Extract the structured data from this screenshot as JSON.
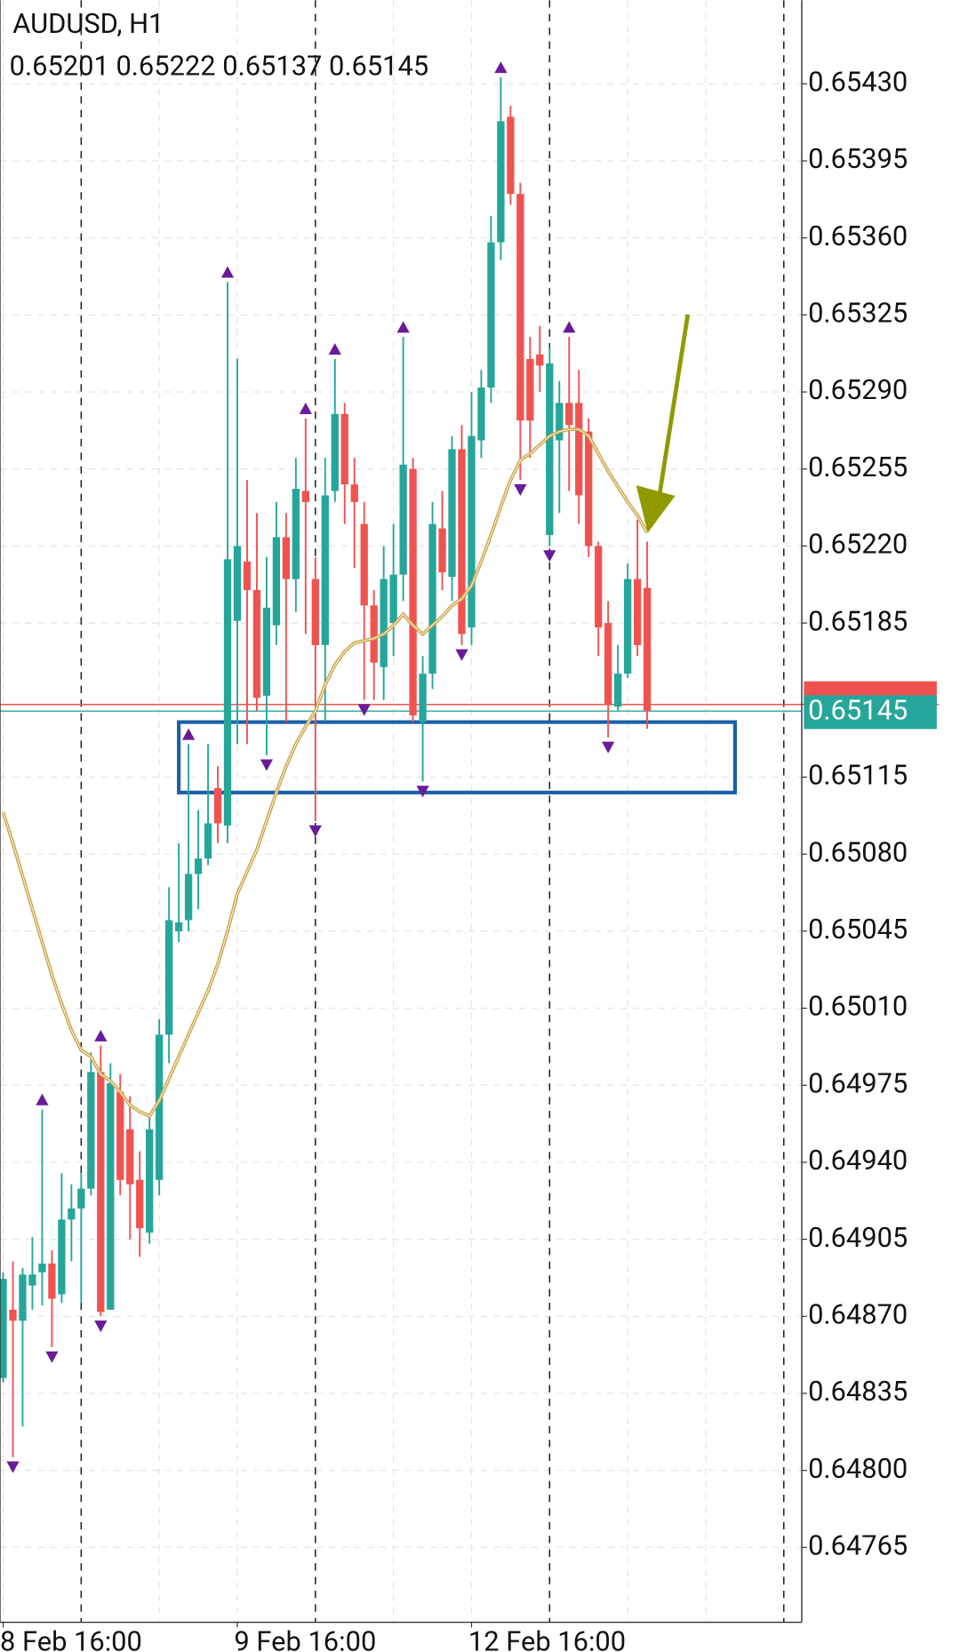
{
  "chart_data": {
    "type": "candlestick",
    "header": {
      "symbol": "AUDUSD, H1",
      "ohlc": "0.65201 0.65222 0.65137 0.65145"
    },
    "up_color": "#26a69a",
    "down_color": "#ef5350",
    "open": [
      0.64842,
      0.64873,
      0.64868,
      0.64884,
      0.6489,
      0.64894,
      0.6488,
      0.64914,
      0.64919,
      0.64928,
      0.64981,
      0.64873,
      0.64972,
      0.64955,
      0.64932,
      0.64908,
      0.64932,
      0.64998,
      0.65045,
      0.6505,
      0.65071,
      0.65078,
      0.6511,
      0.65093,
      0.65186,
      0.65213,
      0.652,
      0.65152,
      0.65184,
      0.65224,
      0.65205,
      0.65245,
      0.65205,
      0.65175,
      0.65245,
      0.6528,
      0.65248,
      0.6523,
      0.65193,
      0.65165,
      0.65185,
      0.65207,
      0.65255,
      0.6514,
      0.65162,
      0.65228,
      0.65206,
      0.65264,
      0.65183,
      0.65268,
      0.65292,
      0.65358,
      0.65415,
      0.6538,
      0.65305,
      0.65307,
      0.65225,
      0.65268,
      0.65285,
      0.65285,
      0.65272,
      0.6522,
      0.65185,
      0.65147,
      0.65162,
      0.65205,
      0.65201
    ],
    "high": [
      0.6489,
      0.64895,
      0.64892,
      0.64906,
      0.64964,
      0.649,
      0.64935,
      0.6493,
      0.64935,
      0.6499,
      0.64993,
      0.64985,
      0.6498,
      0.6497,
      0.64945,
      0.64962,
      0.65005,
      0.65065,
      0.65085,
      0.6513,
      0.651,
      0.6513,
      0.6512,
      0.6534,
      0.65305,
      0.6525,
      0.65235,
      0.65215,
      0.6524,
      0.65235,
      0.6526,
      0.65278,
      0.65215,
      0.6526,
      0.65305,
      0.65285,
      0.6526,
      0.6524,
      0.652,
      0.6522,
      0.6523,
      0.65315,
      0.6526,
      0.6517,
      0.6524,
      0.65245,
      0.6527,
      0.65275,
      0.6529,
      0.653,
      0.6537,
      0.65433,
      0.6542,
      0.65385,
      0.65315,
      0.6532,
      0.6531,
      0.65295,
      0.65315,
      0.653,
      0.65278,
      0.65222,
      0.65195,
      0.65175,
      0.65212,
      0.65232,
      0.65222
    ],
    "low": [
      0.6484,
      0.64806,
      0.6482,
      0.64873,
      0.64875,
      0.64856,
      0.64876,
      0.64895,
      0.64876,
      0.64925,
      0.6487,
      0.64873,
      0.64925,
      0.64905,
      0.64897,
      0.64903,
      0.64925,
      0.64985,
      0.6504,
      0.65045,
      0.65055,
      0.65075,
      0.65085,
      0.65085,
      0.6513,
      0.6513,
      0.65145,
      0.65125,
      0.65175,
      0.6514,
      0.6519,
      0.6518,
      0.65095,
      0.6514,
      0.6524,
      0.6523,
      0.6521,
      0.6515,
      0.6515,
      0.6515,
      0.6517,
      0.65195,
      0.6514,
      0.65113,
      0.65155,
      0.652,
      0.65195,
      0.65175,
      0.65175,
      0.6526,
      0.65285,
      0.6535,
      0.65375,
      0.6525,
      0.6526,
      0.6529,
      0.6522,
      0.65235,
      0.65245,
      0.6523,
      0.65215,
      0.6517,
      0.65133,
      0.65145,
      0.6516,
      0.6517,
      0.65137
    ],
    "close": [
      0.64887,
      0.64868,
      0.64889,
      0.64889,
      0.64894,
      0.64878,
      0.64914,
      0.64919,
      0.64928,
      0.64981,
      0.64872,
      0.64976,
      0.64932,
      0.6493,
      0.6491,
      0.64955,
      0.64998,
      0.6505,
      0.65049,
      0.65071,
      0.65078,
      0.65094,
      0.65094,
      0.65214,
      0.6522,
      0.652,
      0.65151,
      0.65192,
      0.65224,
      0.65205,
      0.65246,
      0.6524,
      0.65175,
      0.65243,
      0.6528,
      0.65248,
      0.6524,
      0.65193,
      0.65167,
      0.65205,
      0.65207,
      0.65257,
      0.65143,
      0.65162,
      0.6523,
      0.65208,
      0.65264,
      0.6518,
      0.6527,
      0.65292,
      0.65358,
      0.65413,
      0.6538,
      0.65277,
      0.65277,
      0.65302,
      0.65303,
      0.65285,
      0.65275,
      0.65243,
      0.6522,
      0.65183,
      0.65148,
      0.65162,
      0.65205,
      0.65175,
      0.65145
    ],
    "ma": {
      "color": "#c9a44a",
      "values": [
        0.65099,
        0.65085,
        0.6507,
        0.65055,
        0.6504,
        0.65025,
        0.65012,
        0.65,
        0.64991,
        0.64988,
        0.6498,
        0.64977,
        0.64972,
        0.64966,
        0.64963,
        0.64961,
        0.64968,
        0.64978,
        0.64988,
        0.64998,
        0.65008,
        0.65018,
        0.6503,
        0.65045,
        0.65062,
        0.65072,
        0.65082,
        0.65095,
        0.65108,
        0.6512,
        0.6513,
        0.65138,
        0.65145,
        0.65157,
        0.65166,
        0.65172,
        0.65176,
        0.65177,
        0.65178,
        0.6518,
        0.65184,
        0.65189,
        0.65184,
        0.6518,
        0.65184,
        0.65188,
        0.65193,
        0.65196,
        0.65202,
        0.65213,
        0.65225,
        0.65238,
        0.6525,
        0.65259,
        0.65262,
        0.65266,
        0.6527,
        0.65272,
        0.65273,
        0.65273,
        0.6527,
        0.65262,
        0.65254,
        0.65247,
        0.6524,
        0.65234,
        0.65226
      ]
    },
    "fractals": {
      "color": "#6a1b9a",
      "up": [
        4,
        10,
        19,
        23,
        31,
        34,
        41,
        51,
        58
      ],
      "down": [
        1,
        5,
        10,
        27,
        32,
        37,
        43,
        47,
        53,
        56,
        62
      ]
    },
    "bid": 0.65145,
    "ask": 0.65148,
    "zone": {
      "top": 0.6514,
      "bottom": 0.65108,
      "from": 18,
      "to": 75,
      "color": "#1a5fa8"
    },
    "xlim": [
      -0.32,
      81.84
    ],
    "ylim": [
      0.64731,
      0.65468
    ],
    "yticks": [
      {
        "value": 0.6543,
        "label": "0.65430"
      },
      0.65395,
      {
        "value": 0.6536,
        "label": "0.65360"
      },
      0.65325,
      {
        "value": 0.6529,
        "label": "0.65290"
      },
      0.65255,
      {
        "value": 0.6522,
        "label": "0.65220"
      },
      0.65185,
      0.65115,
      {
        "value": 0.6508,
        "label": "0.65080"
      },
      0.65045,
      {
        "value": 0.6501,
        "label": "0.65010"
      },
      0.64975,
      {
        "value": 0.6494,
        "label": "0.64940"
      },
      0.64905,
      {
        "value": 0.6487,
        "label": "0.64870"
      },
      0.64835,
      {
        "value": 0.648,
        "label": "0.64800"
      },
      0.64765
    ],
    "xticks": [
      {
        "value": 0,
        "label": "8 Feb 16:00"
      },
      {
        "value": 24,
        "label": "9 Feb 16:00"
      },
      {
        "value": 48,
        "label": "12 Feb 16:00"
      }
    ],
    "xgrid": [
      0,
      16,
      24,
      40,
      48,
      64,
      72
    ],
    "separators": [
      8,
      32,
      56,
      80
    ],
    "grid": true
  }
}
